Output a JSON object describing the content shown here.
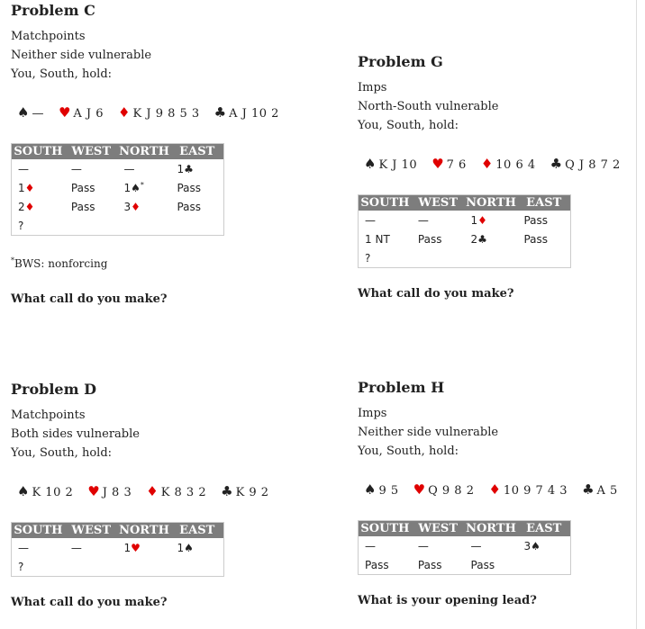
{
  "problems": [
    {
      "title": "Problem C",
      "lines": [
        "Matchpoints",
        "Neither side vulnerable",
        "You, South, hold:"
      ],
      "hand": [
        {
          "suit": "♠",
          "cards": "—"
        },
        {
          "suit": "♥",
          "cards": "A J 6"
        },
        {
          "suit": "♦",
          "cards": "K J 9 8 5 3"
        },
        {
          "suit": "♣",
          "cards": "A J 10 2"
        }
      ],
      "auction": {
        "header": [
          "SOUTH",
          "WEST",
          "NORTH",
          "EAST"
        ],
        "rows": [
          [
            "—",
            "—",
            "—",
            "1♣"
          ],
          [
            "1♦",
            "Pass",
            "1♠*",
            "Pass"
          ],
          [
            "2♦",
            "Pass",
            "3♦",
            "Pass"
          ],
          [
            "?"
          ]
        ]
      },
      "footnote": "*BWS: nonforcing",
      "question": "What call do you make?"
    },
    {
      "title": "Problem G",
      "lines": [
        "Imps",
        "North-South vulnerable",
        "You, South, hold:"
      ],
      "hand": [
        {
          "suit": "♠",
          "cards": "K J 10"
        },
        {
          "suit": "♥",
          "cards": "7 6"
        },
        {
          "suit": "♦",
          "cards": "10 6 4"
        },
        {
          "suit": "♣",
          "cards": "Q J 8 7 2"
        }
      ],
      "auction": {
        "header": [
          "SOUTH",
          "WEST",
          "NORTH",
          "EAST"
        ],
        "rows": [
          [
            "—",
            "—",
            "1♦",
            "Pass"
          ],
          [
            "1 NT",
            "Pass",
            "2♣",
            "Pass"
          ],
          [
            "?"
          ]
        ]
      },
      "question": "What call do you make?"
    },
    {
      "title": "Problem D",
      "lines": [
        "Matchpoints",
        "Both sides vulnerable",
        "You, South, hold:"
      ],
      "hand": [
        {
          "suit": "♠",
          "cards": "K 10 2"
        },
        {
          "suit": "♥",
          "cards": "J 8 3"
        },
        {
          "suit": "♦",
          "cards": "K 8 3 2"
        },
        {
          "suit": "♣",
          "cards": "K 9 2"
        }
      ],
      "auction": {
        "header": [
          "SOUTH",
          "WEST",
          "NORTH",
          "EAST"
        ],
        "rows": [
          [
            "—",
            "—",
            "1♥",
            "1♠"
          ],
          [
            "?"
          ]
        ]
      },
      "question": "What call do you make?"
    },
    {
      "title": "Problem H",
      "lines": [
        "Imps",
        "Neither side vulnerable",
        "You, South, hold:"
      ],
      "hand": [
        {
          "suit": "♠",
          "cards": "9 5"
        },
        {
          "suit": "♥",
          "cards": "Q 9 8 2"
        },
        {
          "suit": "♦",
          "cards": "10 9 7 4 3"
        },
        {
          "suit": "♣",
          "cards": "A 5"
        }
      ],
      "auction": {
        "header": [
          "SOUTH",
          "WEST",
          "NORTH",
          "EAST"
        ],
        "rows": [
          [
            "—",
            "—",
            "—",
            "3♠"
          ],
          [
            "Pass",
            "Pass",
            "Pass"
          ]
        ]
      },
      "question": "What is your opening lead?"
    }
  ]
}
